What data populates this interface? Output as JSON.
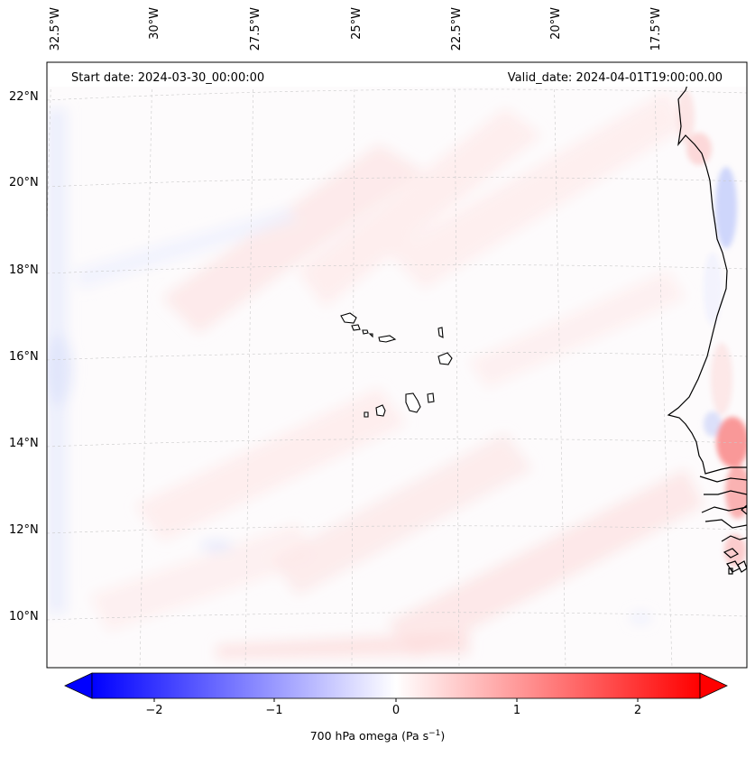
{
  "header": {
    "start_date": "Start date: 2024-03-30_00:00:00",
    "valid_date": "Valid_date: 2024-04-01T19:00:00.00"
  },
  "map": {
    "latitude_labels": [
      "22°N",
      "20°N",
      "18°N",
      "16°N",
      "14°N",
      "12°N",
      "10°N"
    ],
    "longitude_labels": [
      "32.5°W",
      "30°W",
      "27.5°W",
      "25°W",
      "22.5°W",
      "20°W",
      "17.5°W"
    ],
    "features": [
      "cape-verde-islands",
      "west-african-coastline"
    ]
  },
  "colorbar": {
    "title": "700 hPa omega (Pa s",
    "title_superscript": "−1",
    "title_suffix": ")",
    "ticks": [
      "−2",
      "−1",
      "0",
      "1",
      "2"
    ],
    "min": -2.6,
    "max": 2.6,
    "color_low": "#0000ff",
    "color_mid": "#ffffff",
    "color_high": "#ff0000"
  }
}
